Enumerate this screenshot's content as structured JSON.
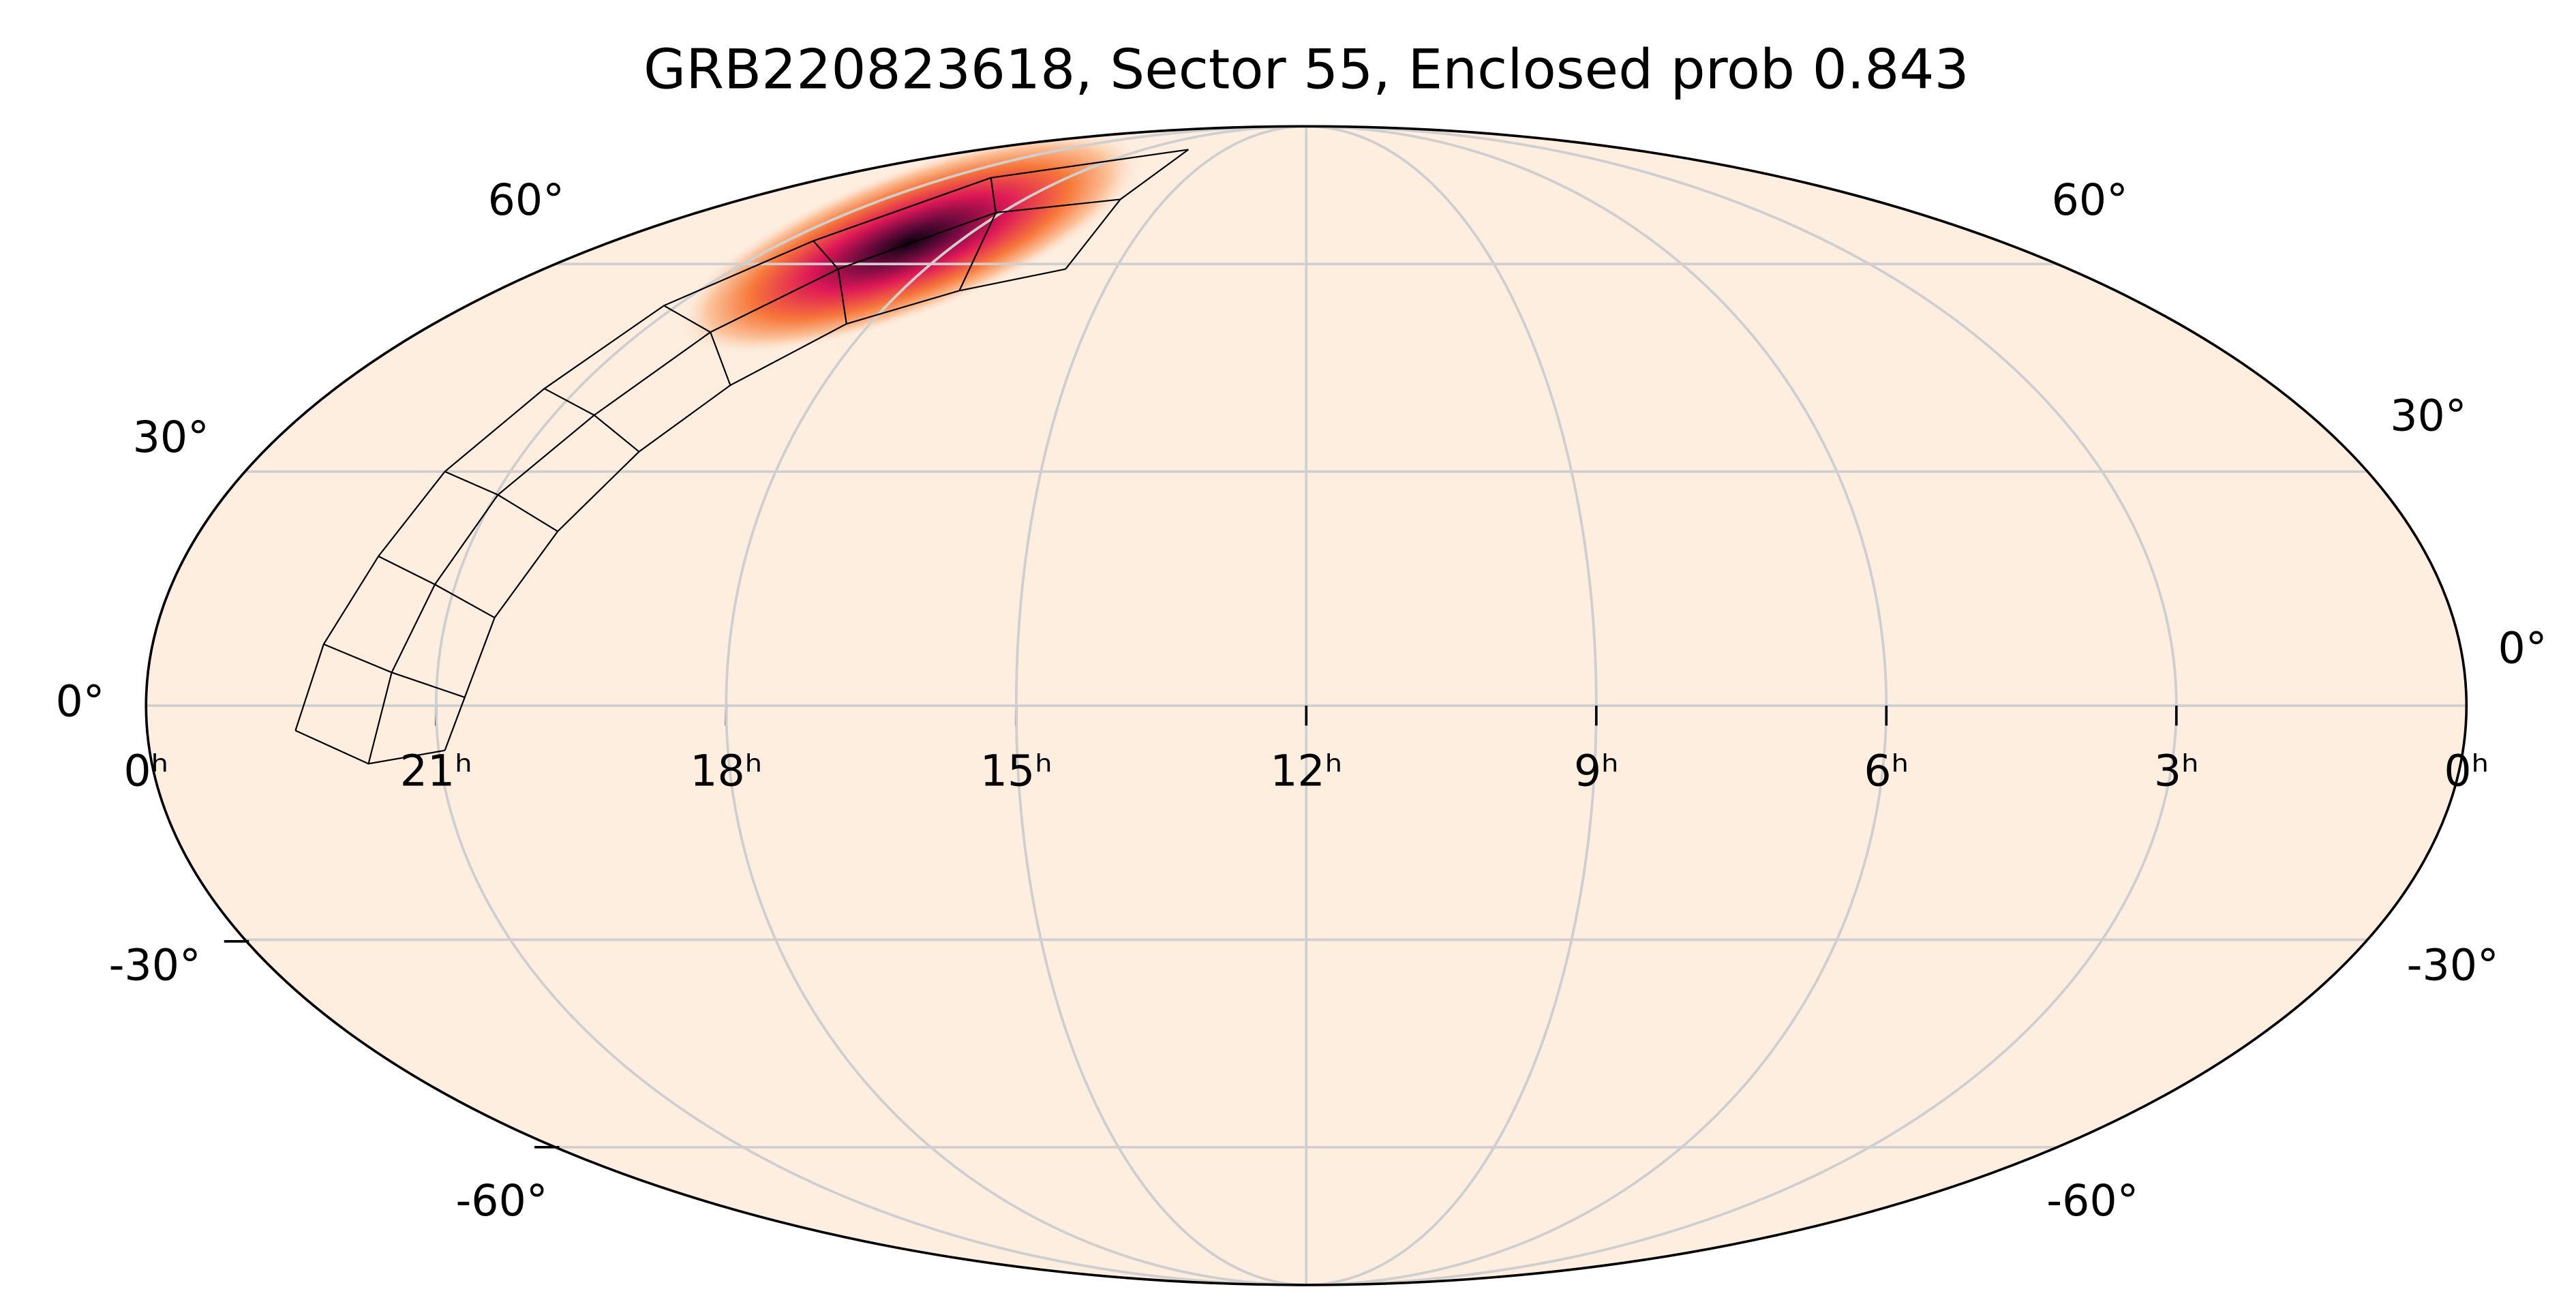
{
  "title": "GRB220823618, Sector 55, Enclosed prob 0.843",
  "ra_ticks": [
    {
      "value": 24,
      "label": "0ʰ"
    },
    {
      "value": 21,
      "label": "21ʰ"
    },
    {
      "value": 18,
      "label": "18ʰ"
    },
    {
      "value": 15,
      "label": "15ʰ"
    },
    {
      "value": 12,
      "label": "12ʰ"
    },
    {
      "value": 9,
      "label": "9ʰ"
    },
    {
      "value": 6,
      "label": "6ʰ"
    },
    {
      "value": 3,
      "label": "3ʰ"
    },
    {
      "value": 0,
      "label": "0ʰ"
    }
  ],
  "dec_ticks": [
    {
      "value": 60,
      "label": "60°"
    },
    {
      "value": 30,
      "label": "30°"
    },
    {
      "value": 0,
      "label": "0°"
    },
    {
      "value": -30,
      "label": "-30°"
    },
    {
      "value": -60,
      "label": "-60°"
    }
  ]
}
